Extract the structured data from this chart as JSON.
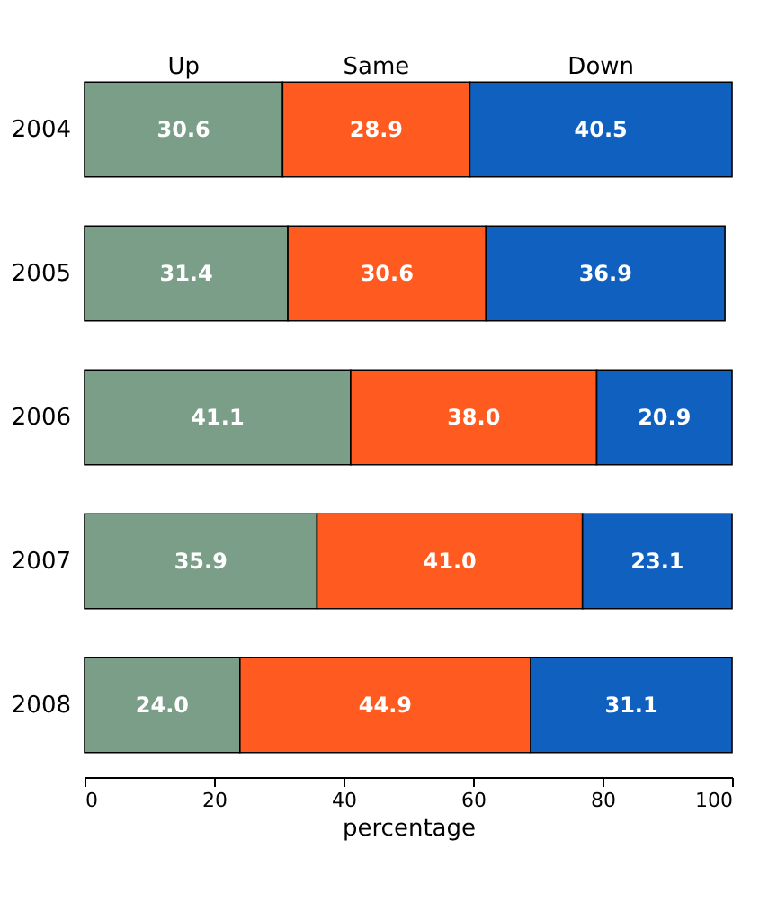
{
  "chart_data": {
    "type": "bar",
    "orientation": "horizontal",
    "stacked": true,
    "xlabel": "percentage",
    "categories": [
      "2004",
      "2005",
      "2006",
      "2007",
      "2008"
    ],
    "series": [
      {
        "name": "Up",
        "color": "#7a9e88",
        "values": [
          30.6,
          31.4,
          41.1,
          35.9,
          24.0
        ],
        "value_labels": [
          "30.6",
          "31.4",
          "41.1",
          "35.9",
          "24.0"
        ]
      },
      {
        "name": "Same",
        "color": "#ff5a1f",
        "values": [
          28.9,
          30.6,
          38.0,
          41.0,
          44.9
        ],
        "value_labels": [
          "28.9",
          "30.6",
          "38.0",
          "41.0",
          "44.9"
        ]
      },
      {
        "name": "Down",
        "color": "#1060c0",
        "values": [
          40.5,
          36.9,
          20.9,
          23.1,
          31.1
        ],
        "value_labels": [
          "40.5",
          "36.9",
          "20.9",
          "23.1",
          "31.1"
        ]
      }
    ],
    "xlim": [
      0,
      100
    ],
    "xticks": [
      0,
      20,
      40,
      60,
      80,
      100
    ],
    "grid": false
  }
}
